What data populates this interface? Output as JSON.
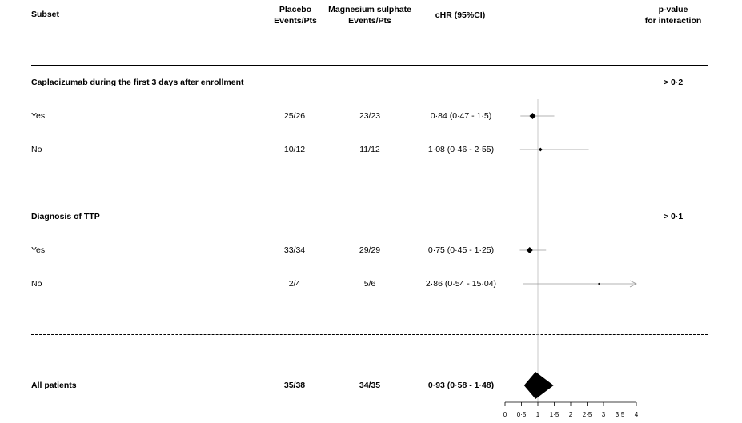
{
  "columns": {
    "subset": "Subset",
    "placebo": [
      "Placebo",
      "Events/Pts"
    ],
    "magnesium": [
      "Magnesium sulphate",
      "Events/Pts"
    ],
    "chr": "cHR (95%CI)",
    "pvalue": [
      "p-value",
      "for interaction"
    ]
  },
  "groups": [
    {
      "label": "Caplacizumab during the first 3 days after enrollment",
      "p_interaction": "> 0·2"
    },
    {
      "label": "Diagnosis of TTP",
      "p_interaction": "> 0·1"
    }
  ],
  "rows": [
    {
      "subset": "Yes",
      "placebo": "25/26",
      "magnesium": "23/23",
      "chr_text": "0·84 (0·47 - 1·5)"
    },
    {
      "subset": "No",
      "placebo": "10/12",
      "magnesium": "11/12",
      "chr_text": "1·08 (0·46 - 2·55)"
    },
    {
      "subset": "Yes",
      "placebo": "33/34",
      "magnesium": "29/29",
      "chr_text": "0·75 (0·45 - 1·25)"
    },
    {
      "subset": "No",
      "placebo": "2/4",
      "magnesium": "5/6",
      "chr_text": "2·86 (0·54 - 15·04)"
    }
  ],
  "overall": {
    "subset": "All patients",
    "placebo": "35/38",
    "magnesium": "34/35",
    "chr_text": "0·93 (0·58 - 1·48)"
  },
  "chart_data": {
    "type": "forest",
    "reference_line": 1,
    "xlim": [
      0,
      4
    ],
    "ticks": [
      0,
      0.5,
      1,
      1.5,
      2,
      2.5,
      3,
      3.5,
      4
    ],
    "tick_labels": [
      "0",
      "0·5",
      "1",
      "1·5",
      "2",
      "2·5",
      "3",
      "3·5",
      "4"
    ],
    "estimates": [
      {
        "hr": 0.84,
        "lo": 0.47,
        "hi": 1.5,
        "size": "large"
      },
      {
        "hr": 1.08,
        "lo": 0.46,
        "hi": 2.55,
        "size": "small"
      },
      {
        "hr": 0.75,
        "lo": 0.45,
        "hi": 1.25,
        "size": "large"
      },
      {
        "hr": 2.86,
        "lo": 0.54,
        "hi": 15.04,
        "size": "tiny",
        "truncated_high": true
      }
    ],
    "overall": {
      "hr": 0.93,
      "lo": 0.58,
      "hi": 1.48
    }
  }
}
